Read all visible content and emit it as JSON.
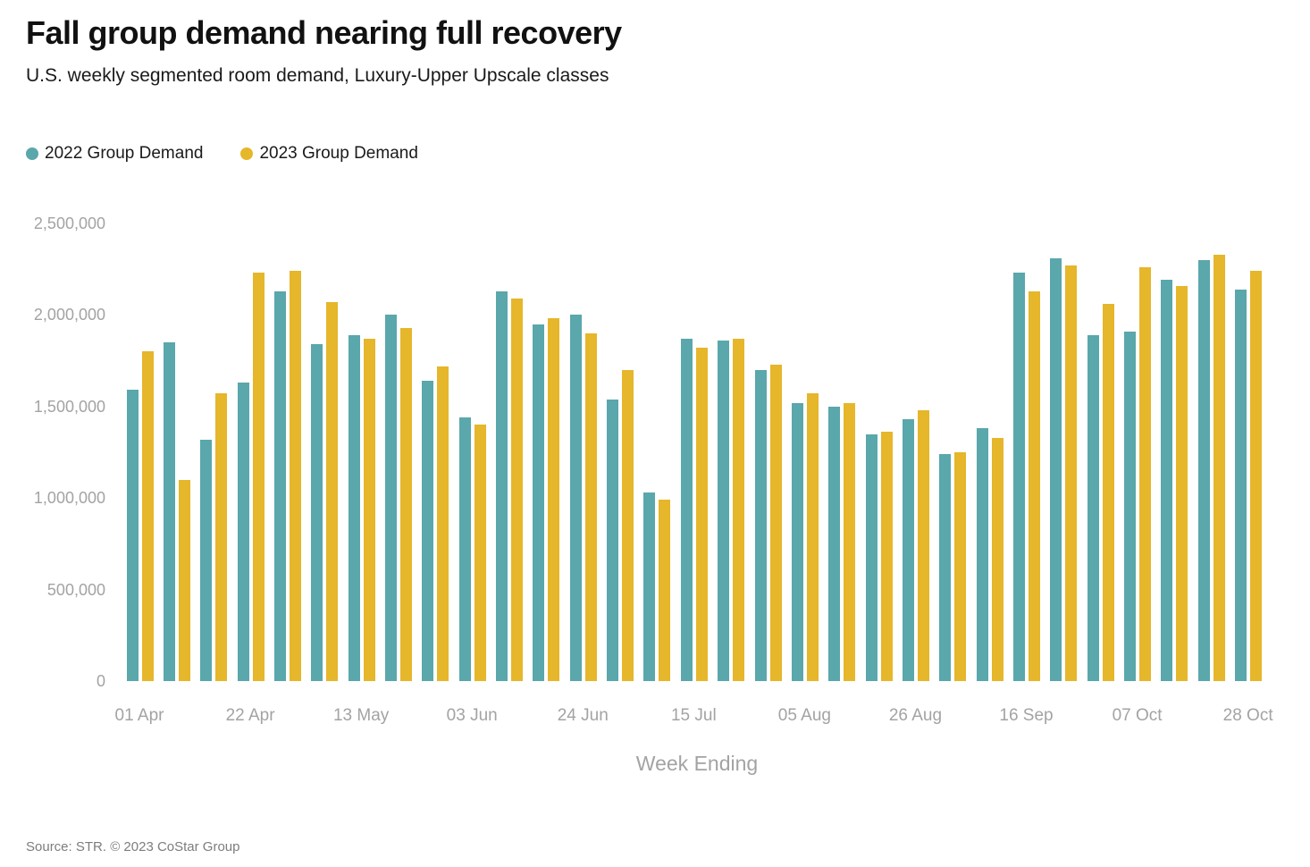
{
  "title": "Fall group demand nearing full recovery",
  "subtitle": "U.S. weekly segmented room demand, Luxury-Upper Upscale classes",
  "source": "Source: STR. © 2023 CoStar Group",
  "legend": [
    {
      "label": "2022 Group Demand",
      "color": "#5AA7AC"
    },
    {
      "label": "2023 Group Demand",
      "color": "#E6B62B"
    }
  ],
  "colors": {
    "series_2022": "#5AA7AC",
    "series_2023": "#E6B62B",
    "axis_text": "#a3a3a3",
    "title_text": "#111111",
    "background": "#ffffff"
  },
  "chart_data": {
    "type": "bar",
    "title": "Fall group demand nearing full recovery",
    "subtitle": "U.S. weekly segmented room demand, Luxury-Upper Upscale classes",
    "xlabel": "Week Ending",
    "ylabel": "",
    "ylim": [
      0,
      2500000
    ],
    "grid": false,
    "legend_position": "top-left",
    "ytick_labels": [
      "0",
      "500,000",
      "1,000,000",
      "1,500,000",
      "2,000,000",
      "2,500,000"
    ],
    "xtick_labels": [
      "01 Apr",
      "22 Apr",
      "13 May",
      "03 Jun",
      "24 Jun",
      "15 Jul",
      "05 Aug",
      "26 Aug",
      "16 Sep",
      "07 Oct",
      "28 Oct"
    ],
    "xtick_every_n_groups": 3,
    "categories": [
      "01 Apr",
      "08 Apr",
      "15 Apr",
      "22 Apr",
      "29 Apr",
      "06 May",
      "13 May",
      "20 May",
      "27 May",
      "03 Jun",
      "10 Jun",
      "17 Jun",
      "24 Jun",
      "01 Jul",
      "08 Jul",
      "15 Jul",
      "22 Jul",
      "29 Jul",
      "05 Aug",
      "12 Aug",
      "19 Aug",
      "26 Aug",
      "02 Sep",
      "09 Sep",
      "16 Sep",
      "23 Sep",
      "30 Sep",
      "07 Oct",
      "14 Oct",
      "21 Oct",
      "28 Oct"
    ],
    "series": [
      {
        "name": "2022 Group Demand",
        "color": "#5AA7AC",
        "values": [
          1590000,
          1850000,
          1320000,
          1630000,
          2130000,
          1840000,
          1890000,
          2000000,
          1640000,
          1440000,
          2130000,
          1950000,
          2000000,
          1540000,
          1030000,
          1870000,
          1860000,
          1700000,
          1520000,
          1500000,
          1350000,
          1430000,
          1240000,
          1380000,
          2230000,
          2310000,
          1890000,
          1910000,
          2190000,
          2300000,
          2140000
        ]
      },
      {
        "name": "2023 Group Demand",
        "color": "#E6B62B",
        "values": [
          1800000,
          1100000,
          1570000,
          2230000,
          2240000,
          2070000,
          1870000,
          1930000,
          1720000,
          1400000,
          2090000,
          1980000,
          1900000,
          1700000,
          990000,
          1820000,
          1870000,
          1730000,
          1570000,
          1520000,
          1360000,
          1480000,
          1250000,
          1330000,
          2130000,
          2270000,
          2060000,
          2260000,
          2160000,
          2330000,
          2240000
        ]
      }
    ]
  }
}
